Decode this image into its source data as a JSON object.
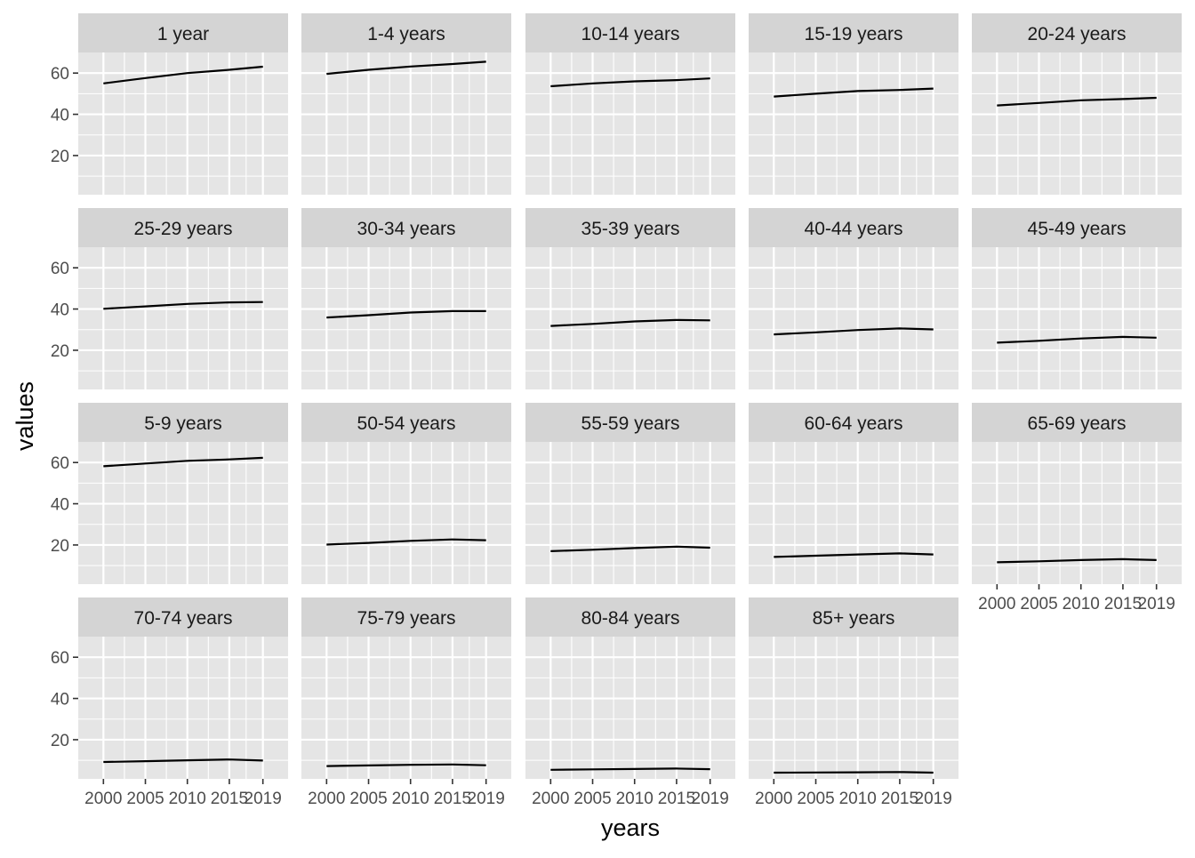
{
  "chart_data": {
    "type": "line",
    "layout": "faceted small multiples, 5 columns x 4 rows",
    "xlabel": "years",
    "ylabel": "values",
    "x": [
      2000,
      2005,
      2010,
      2015,
      2019
    ],
    "x_ticks": [
      "2000",
      "2005",
      "2010",
      "2015",
      "2019"
    ],
    "y_ticks": [
      "20",
      "40",
      "60"
    ],
    "xlim": [
      1997,
      2022
    ],
    "ylim": [
      1,
      70
    ],
    "grid": true,
    "colors": {
      "panel_bg": "#e5e5e5",
      "strip_bg": "#d4d4d4",
      "gridline": "#ffffff",
      "line": "#000000",
      "text": "#1a1a1a",
      "axis_text": "#4d4d4d",
      "tick": "#333333"
    },
    "series": [
      {
        "name": "1 year",
        "values": [
          55.0,
          57.6,
          60.0,
          61.6,
          63.1
        ]
      },
      {
        "name": "1-4 years",
        "values": [
          59.6,
          61.6,
          63.2,
          64.4,
          65.5
        ]
      },
      {
        "name": "10-14 years",
        "values": [
          53.6,
          55.0,
          56.0,
          56.6,
          57.4
        ]
      },
      {
        "name": "15-19  years",
        "values": [
          48.6,
          50.0,
          51.3,
          51.8,
          52.5
        ]
      },
      {
        "name": "20-24 years",
        "values": [
          44.3,
          45.5,
          46.8,
          47.4,
          48.0
        ]
      },
      {
        "name": "25-29 years",
        "values": [
          40.1,
          41.3,
          42.5,
          43.2,
          43.4
        ]
      },
      {
        "name": "30-34 years",
        "values": [
          35.9,
          37.0,
          38.3,
          39.0,
          39.0
        ]
      },
      {
        "name": "35-39 years",
        "values": [
          31.8,
          32.8,
          34.0,
          34.7,
          34.5
        ]
      },
      {
        "name": "40-44 years",
        "values": [
          27.7,
          28.7,
          29.8,
          30.6,
          30.1
        ]
      },
      {
        "name": "45-49 years",
        "values": [
          23.7,
          24.6,
          25.7,
          26.5,
          26.1
        ]
      },
      {
        "name": "5-9 years",
        "values": [
          58.2,
          59.5,
          60.8,
          61.5,
          62.3
        ]
      },
      {
        "name": "50-54 years",
        "values": [
          20.2,
          21.0,
          22.0,
          22.7,
          22.3
        ]
      },
      {
        "name": "55-59 years",
        "values": [
          17.0,
          17.7,
          18.5,
          19.2,
          18.7
        ]
      },
      {
        "name": "60-64 years",
        "values": [
          14.2,
          14.8,
          15.4,
          15.9,
          15.4
        ]
      },
      {
        "name": "65-69 years",
        "values": [
          11.6,
          12.1,
          12.7,
          13.1,
          12.7
        ]
      },
      {
        "name": "70-74 years",
        "values": [
          9.2,
          9.6,
          10.0,
          10.4,
          9.9
        ]
      },
      {
        "name": "75-79 years",
        "values": [
          7.2,
          7.5,
          7.8,
          8.0,
          7.6
        ]
      },
      {
        "name": "80-84 years",
        "values": [
          5.4,
          5.6,
          5.8,
          6.0,
          5.7
        ]
      },
      {
        "name": "85+ years",
        "values": [
          4.0,
          4.1,
          4.2,
          4.3,
          4.0
        ]
      }
    ]
  }
}
